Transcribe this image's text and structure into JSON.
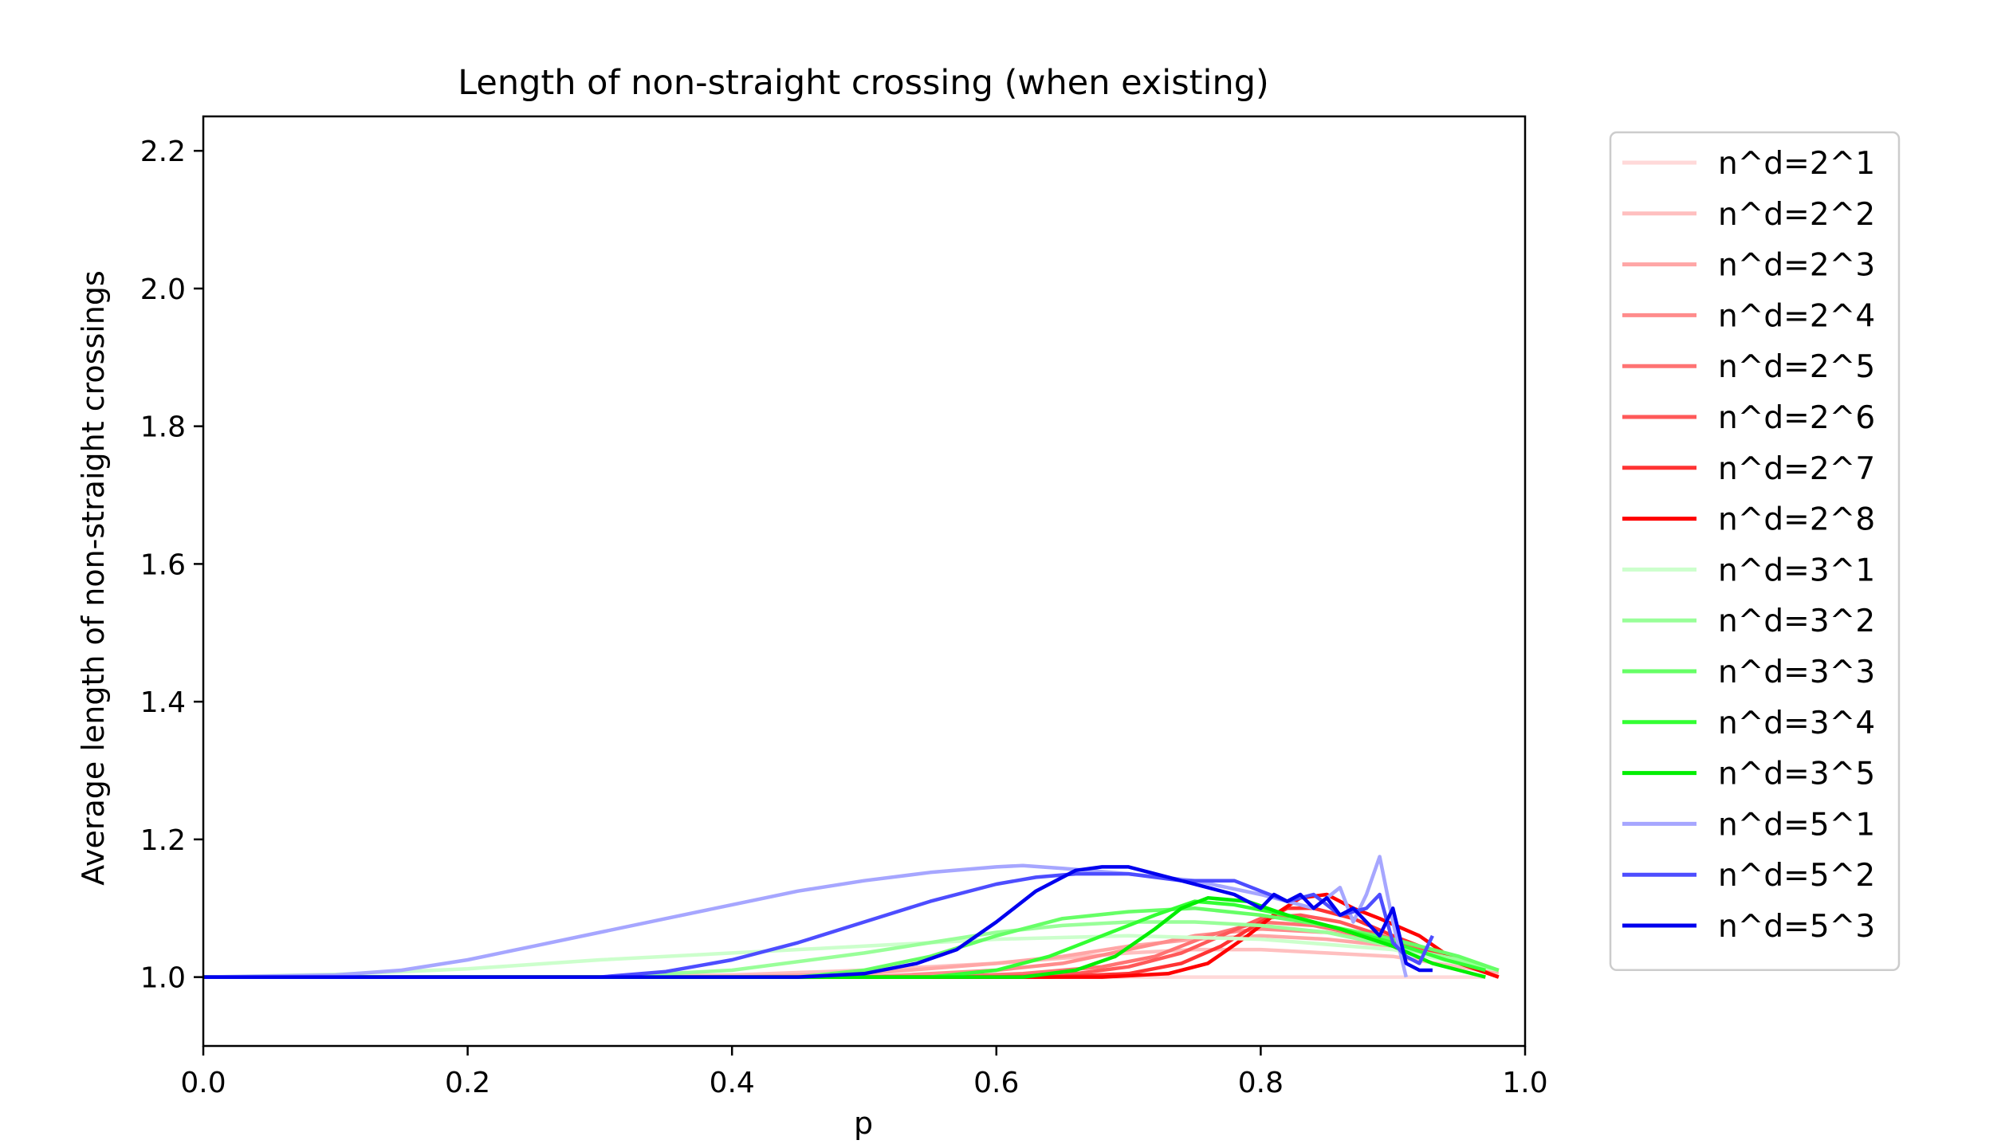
{
  "chart_data": {
    "type": "line",
    "title": "Length of non-straight crossing (when existing)",
    "xlabel": "p",
    "ylabel": "Average length of non-straight crossings",
    "xlim": [
      0.0,
      1.0
    ],
    "ylim": [
      0.9,
      2.25
    ],
    "xticks": [
      0.0,
      0.2,
      0.4,
      0.6,
      0.8,
      1.0
    ],
    "xtick_labels": [
      "0.0",
      "0.2",
      "0.4",
      "0.6",
      "0.8",
      "1.0"
    ],
    "yticks": [
      1.0,
      1.2,
      1.4,
      1.6,
      1.8,
      2.0,
      2.2
    ],
    "ytick_labels": [
      "1.0",
      "1.2",
      "1.4",
      "1.6",
      "1.8",
      "2.0",
      "2.2"
    ],
    "legend_position": "outside-right",
    "series": [
      {
        "name": "n^d=2^1",
        "color": "#ffd9d9",
        "x": [
          0.0,
          0.5,
          0.6,
          0.7,
          0.8,
          0.9,
          0.95,
          0.97
        ],
        "y": [
          1.0,
          1.0,
          1.0,
          1.0,
          1.0,
          1.0,
          1.0,
          1.0
        ]
      },
      {
        "name": "n^d=2^2",
        "color": "#ffbfbf",
        "x": [
          0.0,
          0.3,
          0.4,
          0.5,
          0.6,
          0.7,
          0.75,
          0.8,
          0.85,
          0.9,
          0.95,
          0.98
        ],
        "y": [
          1.0,
          1.0,
          1.003,
          1.01,
          1.02,
          1.035,
          1.04,
          1.04,
          1.035,
          1.03,
          1.015,
          1.005
        ]
      },
      {
        "name": "n^d=2^3",
        "color": "#ffa6a6",
        "x": [
          0.0,
          0.4,
          0.5,
          0.6,
          0.65,
          0.7,
          0.75,
          0.8,
          0.85,
          0.9,
          0.95,
          0.98
        ],
        "y": [
          1.0,
          1.0,
          1.005,
          1.02,
          1.03,
          1.045,
          1.055,
          1.06,
          1.055,
          1.045,
          1.02,
          1.008
        ]
      },
      {
        "name": "n^d=2^4",
        "color": "#ff8c8c",
        "x": [
          0.0,
          0.5,
          0.6,
          0.65,
          0.7,
          0.75,
          0.8,
          0.85,
          0.9,
          0.95,
          0.98
        ],
        "y": [
          1.0,
          1.0,
          1.01,
          1.02,
          1.04,
          1.06,
          1.07,
          1.065,
          1.05,
          1.025,
          1.01
        ]
      },
      {
        "name": "n^d=2^5",
        "color": "#ff7373",
        "x": [
          0.0,
          0.55,
          0.62,
          0.68,
          0.72,
          0.76,
          0.8,
          0.84,
          0.88,
          0.92,
          0.96,
          0.98
        ],
        "y": [
          1.0,
          1.0,
          1.005,
          1.015,
          1.03,
          1.06,
          1.08,
          1.075,
          1.06,
          1.04,
          1.02,
          1.01
        ]
      },
      {
        "name": "n^d=2^6",
        "color": "#ff5959",
        "x": [
          0.0,
          0.6,
          0.66,
          0.7,
          0.74,
          0.77,
          0.8,
          0.83,
          0.86,
          0.9,
          0.94,
          0.98
        ],
        "y": [
          1.0,
          1.0,
          1.005,
          1.015,
          1.035,
          1.06,
          1.085,
          1.09,
          1.08,
          1.055,
          1.03,
          1.01
        ]
      },
      {
        "name": "n^d=2^7",
        "color": "#ff3333",
        "x": [
          0.0,
          0.64,
          0.7,
          0.74,
          0.77,
          0.8,
          0.82,
          0.84,
          0.87,
          0.9,
          0.94,
          0.98
        ],
        "y": [
          1.0,
          1.0,
          1.005,
          1.02,
          1.045,
          1.08,
          1.1,
          1.1,
          1.085,
          1.06,
          1.03,
          1.0
        ]
      },
      {
        "name": "n^d=2^8",
        "color": "#ff0000",
        "x": [
          0.0,
          0.68,
          0.73,
          0.76,
          0.79,
          0.81,
          0.83,
          0.85,
          0.87,
          0.89,
          0.92,
          0.95,
          0.98
        ],
        "y": [
          1.0,
          1.0,
          1.005,
          1.02,
          1.06,
          1.09,
          1.115,
          1.12,
          1.1,
          1.085,
          1.06,
          1.02,
          1.0
        ]
      },
      {
        "name": "n^d=3^1",
        "color": "#ccffcc",
        "x": [
          0.0,
          0.1,
          0.2,
          0.3,
          0.4,
          0.5,
          0.6,
          0.7,
          0.8,
          0.9,
          0.95,
          0.98
        ],
        "y": [
          1.0,
          1.004,
          1.012,
          1.025,
          1.035,
          1.045,
          1.055,
          1.06,
          1.055,
          1.04,
          1.02,
          1.01
        ]
      },
      {
        "name": "n^d=3^2",
        "color": "#99ff99",
        "x": [
          0.0,
          0.3,
          0.4,
          0.5,
          0.55,
          0.6,
          0.65,
          0.7,
          0.75,
          0.8,
          0.85,
          0.9,
          0.95,
          0.98
        ],
        "y": [
          1.0,
          1.0,
          1.01,
          1.035,
          1.05,
          1.065,
          1.075,
          1.08,
          1.08,
          1.075,
          1.065,
          1.045,
          1.025,
          1.01
        ]
      },
      {
        "name": "n^d=3^3",
        "color": "#66ff66",
        "x": [
          0.0,
          0.45,
          0.5,
          0.55,
          0.6,
          0.65,
          0.7,
          0.75,
          0.8,
          0.85,
          0.9,
          0.95,
          0.98
        ],
        "y": [
          1.0,
          1.0,
          1.01,
          1.03,
          1.06,
          1.085,
          1.095,
          1.1,
          1.09,
          1.075,
          1.055,
          1.03,
          1.01
        ]
      },
      {
        "name": "n^d=3^4",
        "color": "#33ff33",
        "x": [
          0.0,
          0.55,
          0.6,
          0.64,
          0.68,
          0.72,
          0.75,
          0.78,
          0.82,
          0.86,
          0.9,
          0.94,
          0.97
        ],
        "y": [
          1.0,
          1.0,
          1.01,
          1.03,
          1.06,
          1.09,
          1.11,
          1.105,
          1.09,
          1.07,
          1.05,
          1.025,
          1.01
        ]
      },
      {
        "name": "n^d=3^5",
        "color": "#00ee00",
        "x": [
          0.0,
          0.62,
          0.66,
          0.69,
          0.72,
          0.74,
          0.76,
          0.79,
          0.82,
          0.86,
          0.9,
          0.93,
          0.95,
          0.97
        ],
        "y": [
          1.0,
          1.0,
          1.01,
          1.03,
          1.07,
          1.1,
          1.115,
          1.11,
          1.09,
          1.07,
          1.045,
          1.02,
          1.01,
          1.0
        ]
      },
      {
        "name": "n^d=5^1",
        "color": "#a6a6ff",
        "x": [
          0.0,
          0.1,
          0.15,
          0.2,
          0.25,
          0.3,
          0.35,
          0.4,
          0.45,
          0.5,
          0.55,
          0.6,
          0.62,
          0.65,
          0.7,
          0.75,
          0.8,
          0.84,
          0.86,
          0.87,
          0.88,
          0.89,
          0.9,
          0.91
        ],
        "y": [
          1.0,
          1.003,
          1.01,
          1.025,
          1.045,
          1.065,
          1.085,
          1.105,
          1.125,
          1.14,
          1.152,
          1.16,
          1.162,
          1.158,
          1.15,
          1.14,
          1.12,
          1.1,
          1.13,
          1.08,
          1.12,
          1.175,
          1.08,
          1.0
        ]
      },
      {
        "name": "n^d=5^2",
        "color": "#4d4dff",
        "x": [
          0.0,
          0.3,
          0.35,
          0.4,
          0.45,
          0.5,
          0.55,
          0.6,
          0.63,
          0.66,
          0.7,
          0.74,
          0.78,
          0.8,
          0.82,
          0.84,
          0.86,
          0.88,
          0.89,
          0.9,
          0.91,
          0.92,
          0.93
        ],
        "y": [
          1.0,
          1.0,
          1.008,
          1.025,
          1.05,
          1.08,
          1.11,
          1.135,
          1.145,
          1.15,
          1.15,
          1.14,
          1.14,
          1.125,
          1.11,
          1.12,
          1.09,
          1.1,
          1.12,
          1.05,
          1.03,
          1.02,
          1.06
        ]
      },
      {
        "name": "n^d=5^3",
        "color": "#0000ee",
        "x": [
          0.0,
          0.45,
          0.5,
          0.54,
          0.57,
          0.6,
          0.63,
          0.66,
          0.68,
          0.7,
          0.72,
          0.74,
          0.76,
          0.78,
          0.8,
          0.81,
          0.82,
          0.83,
          0.84,
          0.85,
          0.86,
          0.87,
          0.88,
          0.89,
          0.9,
          0.91,
          0.92,
          0.93
        ],
        "y": [
          1.0,
          1.0,
          1.005,
          1.02,
          1.04,
          1.08,
          1.125,
          1.155,
          1.16,
          1.16,
          1.15,
          1.14,
          1.13,
          1.12,
          1.1,
          1.12,
          1.11,
          1.12,
          1.1,
          1.115,
          1.09,
          1.1,
          1.08,
          1.06,
          1.1,
          1.02,
          1.01,
          1.01
        ]
      }
    ]
  }
}
